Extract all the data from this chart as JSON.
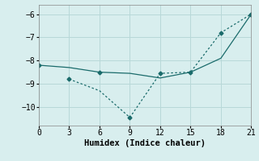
{
  "line1_x": [
    0,
    3,
    6,
    9,
    12,
    15,
    18,
    21
  ],
  "line1_y": [
    -8.2,
    -8.3,
    -8.5,
    -8.55,
    -8.75,
    -8.5,
    -7.9,
    -6.0
  ],
  "line2_x": [
    3,
    6,
    9,
    12,
    15,
    18,
    21
  ],
  "line2_y": [
    -8.8,
    -9.3,
    -10.45,
    -8.55,
    -8.5,
    -6.8,
    -6.0
  ],
  "line_color": "#1a6b6b",
  "bg_color": "#d8eeee",
  "grid_color": "#b8d8d8",
  "xlabel": "Humidex (Indice chaleur)",
  "xlim": [
    0,
    21
  ],
  "ylim": [
    -10.8,
    -5.6
  ],
  "xticks": [
    0,
    3,
    6,
    9,
    12,
    15,
    18,
    21
  ],
  "yticks": [
    -10,
    -9,
    -8,
    -7,
    -6
  ],
  "font_family": "monospace"
}
